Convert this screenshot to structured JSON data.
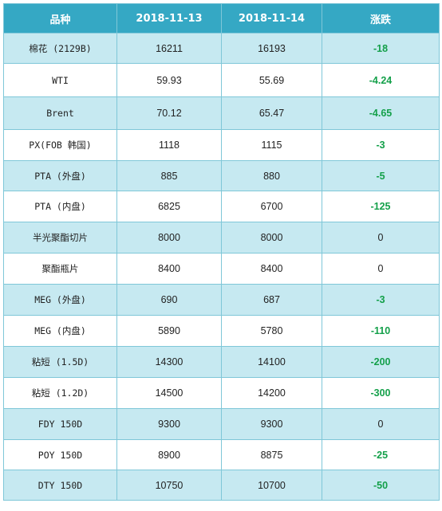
{
  "header": {
    "col_product": "品种",
    "col_date1": "2018-11-13",
    "col_date2": "2018-11-14",
    "col_change": "涨跌"
  },
  "colors": {
    "header_bg": "#35a8c4",
    "row_stripe": "#c6e9f1",
    "negative_change": "#14a04a",
    "border": "#7fc7d8"
  },
  "rows": [
    {
      "name": "棉花 (2129B)",
      "d1": "16211",
      "d2": "16193",
      "change": "-18"
    },
    {
      "name": "WTI",
      "d1": "59.93",
      "d2": "55.69",
      "change": "-4.24"
    },
    {
      "name": "Brent",
      "d1": "70.12",
      "d2": "65.47",
      "change": "-4.65"
    },
    {
      "name": "PX(FOB 韩国)",
      "d1": "1118",
      "d2": "1115",
      "change": "-3"
    },
    {
      "name": "PTA (外盘)",
      "d1": "885",
      "d2": "880",
      "change": "-5"
    },
    {
      "name": "PTA (内盘)",
      "d1": "6825",
      "d2": "6700",
      "change": "-125"
    },
    {
      "name": "半光聚酯切片",
      "d1": "8000",
      "d2": "8000",
      "change": "0"
    },
    {
      "name": "聚酯瓶片",
      "d1": "8400",
      "d2": "8400",
      "change": "0"
    },
    {
      "name": "MEG (外盘)",
      "d1": "690",
      "d2": "687",
      "change": "-3"
    },
    {
      "name": "MEG (内盘)",
      "d1": "5890",
      "d2": "5780",
      "change": "-110"
    },
    {
      "name": "粘短 (1.5D)",
      "d1": "14300",
      "d2": "14100",
      "change": "-200"
    },
    {
      "name": "粘短 (1.2D)",
      "d1": "14500",
      "d2": "14200",
      "change": "-300"
    },
    {
      "name": "FDY 150D",
      "d1": "9300",
      "d2": "9300",
      "change": "0"
    },
    {
      "name": "POY 150D",
      "d1": "8900",
      "d2": "8875",
      "change": "-25"
    },
    {
      "name": "DTY 150D",
      "d1": "10750",
      "d2": "10700",
      "change": "-50"
    }
  ]
}
